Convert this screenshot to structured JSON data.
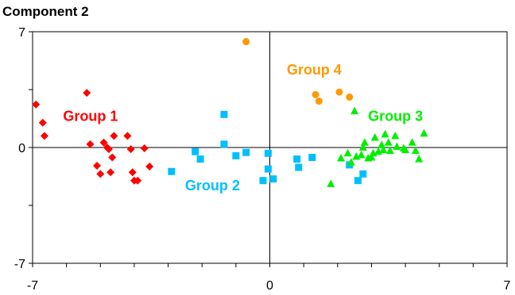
{
  "chart_data": {
    "type": "scatter",
    "title": "Component 2",
    "xlabel": "",
    "ylabel": "",
    "xlim": [
      -7,
      7
    ],
    "ylim": [
      -7,
      7
    ],
    "grid": false,
    "x_ticks": [
      "-7",
      "0",
      "7"
    ],
    "y_ticks": [
      "7",
      "0",
      "-7"
    ],
    "series": [
      {
        "name": "Group 1",
        "color": "#ff0000",
        "marker": "diamond",
        "label_pos": [
          -6.1,
          1.9
        ],
        "points": [
          [
            -6.9,
            2.6
          ],
          [
            -6.7,
            1.5
          ],
          [
            -6.65,
            0.7
          ],
          [
            -5.4,
            3.3
          ],
          [
            -5.3,
            0.2
          ],
          [
            -5.1,
            -1.1
          ],
          [
            -5.0,
            -1.6
          ],
          [
            -4.9,
            0.3
          ],
          [
            -4.8,
            0.0
          ],
          [
            -4.75,
            -0.1
          ],
          [
            -4.7,
            -1.5
          ],
          [
            -4.65,
            -0.6
          ],
          [
            -4.6,
            0.7
          ],
          [
            -4.2,
            0.7
          ],
          [
            -4.1,
            -0.1
          ],
          [
            -4.05,
            -1.5
          ],
          [
            -4.0,
            -2.0
          ],
          [
            -3.9,
            -2.0
          ],
          [
            -3.7,
            -0.05
          ],
          [
            -3.55,
            -1.15
          ]
        ]
      },
      {
        "name": "Group 2",
        "color": "#00bfff",
        "marker": "square",
        "label_pos": [
          -2.5,
          -2.3
        ],
        "points": [
          [
            -2.9,
            -1.45
          ],
          [
            -2.2,
            -0.25
          ],
          [
            -2.05,
            -0.7
          ],
          [
            -1.35,
            2.0
          ],
          [
            -1.35,
            0.2
          ],
          [
            -1.0,
            -0.5
          ],
          [
            -0.7,
            -0.3
          ],
          [
            -0.2,
            -2.0
          ],
          [
            -0.05,
            -0.35
          ],
          [
            -0.05,
            -1.3
          ],
          [
            0.1,
            -1.9
          ],
          [
            0.8,
            -0.7
          ],
          [
            0.85,
            -1.2
          ],
          [
            1.25,
            -0.6
          ],
          [
            2.35,
            -1.05
          ],
          [
            2.6,
            -2.0
          ],
          [
            2.75,
            -1.6
          ]
        ]
      },
      {
        "name": "Group 3",
        "color": "#00ee00",
        "marker": "triangle",
        "label_pos": [
          2.9,
          1.9
        ],
        "points": [
          [
            1.8,
            -2.2
          ],
          [
            2.1,
            -0.65
          ],
          [
            2.3,
            -0.35
          ],
          [
            2.4,
            -0.9
          ],
          [
            2.5,
            2.2
          ],
          [
            2.55,
            -0.55
          ],
          [
            2.7,
            -0.45
          ],
          [
            2.75,
            0.0
          ],
          [
            2.8,
            0.3
          ],
          [
            2.9,
            -0.65
          ],
          [
            3.0,
            -0.6
          ],
          [
            3.05,
            -0.35
          ],
          [
            3.1,
            0.6
          ],
          [
            3.2,
            -0.25
          ],
          [
            3.3,
            0.15
          ],
          [
            3.35,
            -0.15
          ],
          [
            3.4,
            0.8
          ],
          [
            3.5,
            0.3
          ],
          [
            3.55,
            -0.2
          ],
          [
            3.7,
            0.7
          ],
          [
            3.75,
            0.05
          ],
          [
            3.95,
            -0.05
          ],
          [
            4.0,
            -0.15
          ],
          [
            4.2,
            0.3
          ],
          [
            4.3,
            -0.2
          ],
          [
            4.4,
            -0.7
          ],
          [
            4.55,
            0.85
          ]
        ]
      },
      {
        "name": "Group 4",
        "color": "#ff9900",
        "marker": "circle",
        "label_pos": [
          0.5,
          4.7
        ],
        "points": [
          [
            -0.7,
            6.4
          ],
          [
            1.35,
            3.2
          ],
          [
            1.45,
            2.8
          ],
          [
            2.05,
            3.35
          ],
          [
            2.35,
            3.05
          ]
        ]
      }
    ]
  }
}
